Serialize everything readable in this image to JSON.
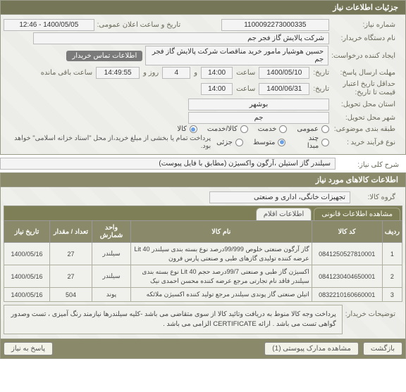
{
  "s1": {
    "title": "جزئیات اطلاعات نیاز",
    "num_lbl": "شماره نیاز:",
    "num": "1100092273000335",
    "pub_lbl": "تاریخ و ساعت اعلان عمومی:",
    "pub": "1400/05/05 - 12:46",
    "buyer_lbl": "نام دستگاه خریدار:",
    "buyer": "شرکت پالایش گاز فجر جم",
    "creator_lbl": "ایجاد کننده درخواست:",
    "creator": "حسین هوشیار مامور خرید مناقصات شرکت پالایش گاز فجر جم",
    "contact_tag": "اطلاعات تماس خریدار",
    "deadline_lbl": "مهلت ارسال پاسخ:",
    "deadline_date": "1400/05/10",
    "time_lbl1": "ساعت",
    "deadline_time": "14:00",
    "and": "و",
    "remain_val": "4",
    "remain_unit": "روز و",
    "remain_time": "14:49:55",
    "remain_sfx": "ساعت باقی مانده",
    "tarikh_lbl": "تاریخ:",
    "valid_lbl": "حداقل تاریخ اعتبار\nقیمت تا تاریخ:",
    "valid_date": "1400/06/31",
    "valid_time": "14:00",
    "prov_lbl": "استان محل تحویل:",
    "prov": "بوشهر",
    "city_lbl": "شهر محل تحویل:",
    "city": "جم",
    "class_lbl": "طبقه بندی موضوعی:",
    "class_opts": {
      "a": "عمومی",
      "b": "خدمت",
      "c": "کالا/خدمت",
      "d": "کالا"
    },
    "proc_lbl": "نوع فرآیند خرید :",
    "proc_opts": {
      "a": "چند مبدا",
      "b": "متوسط",
      "c": "جزئی"
    },
    "pay_note": "پرداخت تمام یا بخشی از مبلغ خرید،از محل \"اسناد خزانه اسلامی\" خواهد بود."
  },
  "s2": {
    "title": "شرح کلی نیاز:",
    "value": "سیلندر گاز استیلن ،آرگون واکسیژن (مطابق با فایل پیوست)"
  },
  "s3": {
    "title": "اطلاعات کالاهای مورد نیاز",
    "group_lbl": "گروه کالا:",
    "group": "تجهیزات خانگی، اداری و صنعتی",
    "tab1": "مشاهده اطلاعات قانونی",
    "tab2": "اطلاعات اقلام",
    "cols": {
      "idx": "ردیف",
      "code": "کد کالا",
      "name": "نام کالا",
      "unit": "واحد شمارش",
      "qty": "تعداد / مقدار",
      "date": "تاریخ نیاز"
    },
    "rows": [
      {
        "idx": "1",
        "code": "0841250527810001",
        "name": "گاز آرگون صنعتی خلوص 99/999درصد نوع بسته بندی سیلندر 40 Lit‎ عرضه کننده تولیدی گازهای طبی و صنعتی پارس فرون",
        "unit": "سیلندر",
        "qty": "27",
        "date": "1400/05/16"
      },
      {
        "idx": "2",
        "code": "0841230404650001",
        "name": "اکسیژن گاز طبی و صنعتی 99/7درصد حجم 40 Lit‎ نوع بسته بندی سیلندر فاقد نام تجارتی مرجع عرضه کننده محسن احمدی نیک",
        "unit": "سیلندر",
        "qty": "27",
        "date": "1400/05/16"
      },
      {
        "idx": "3",
        "code": "0832210160660001",
        "name": "اتیلن صنعتی گاز پوندی سیلندر مرجع تولید کننده اکسیژن ملائکه",
        "unit": "پوند",
        "qty": "504",
        "date": "1400/05/16"
      }
    ],
    "note_lbl": "توضیحات خریدار:",
    "note": "پرداخت وجه کالا منوط به دریافت وتائید کالا از سوی متقاضی می باشد -کلیه سیلندرها نیازمند رنگ آمیزی ، تست وصدور گواهی تست می باشد . ارائه CERTIFICATE الزامی می باشد ."
  },
  "footer": {
    "return": "بازگشت",
    "attach": "مشاهده مدارک پیوستی (1)",
    "reply": "پاسخ به نیاز"
  }
}
